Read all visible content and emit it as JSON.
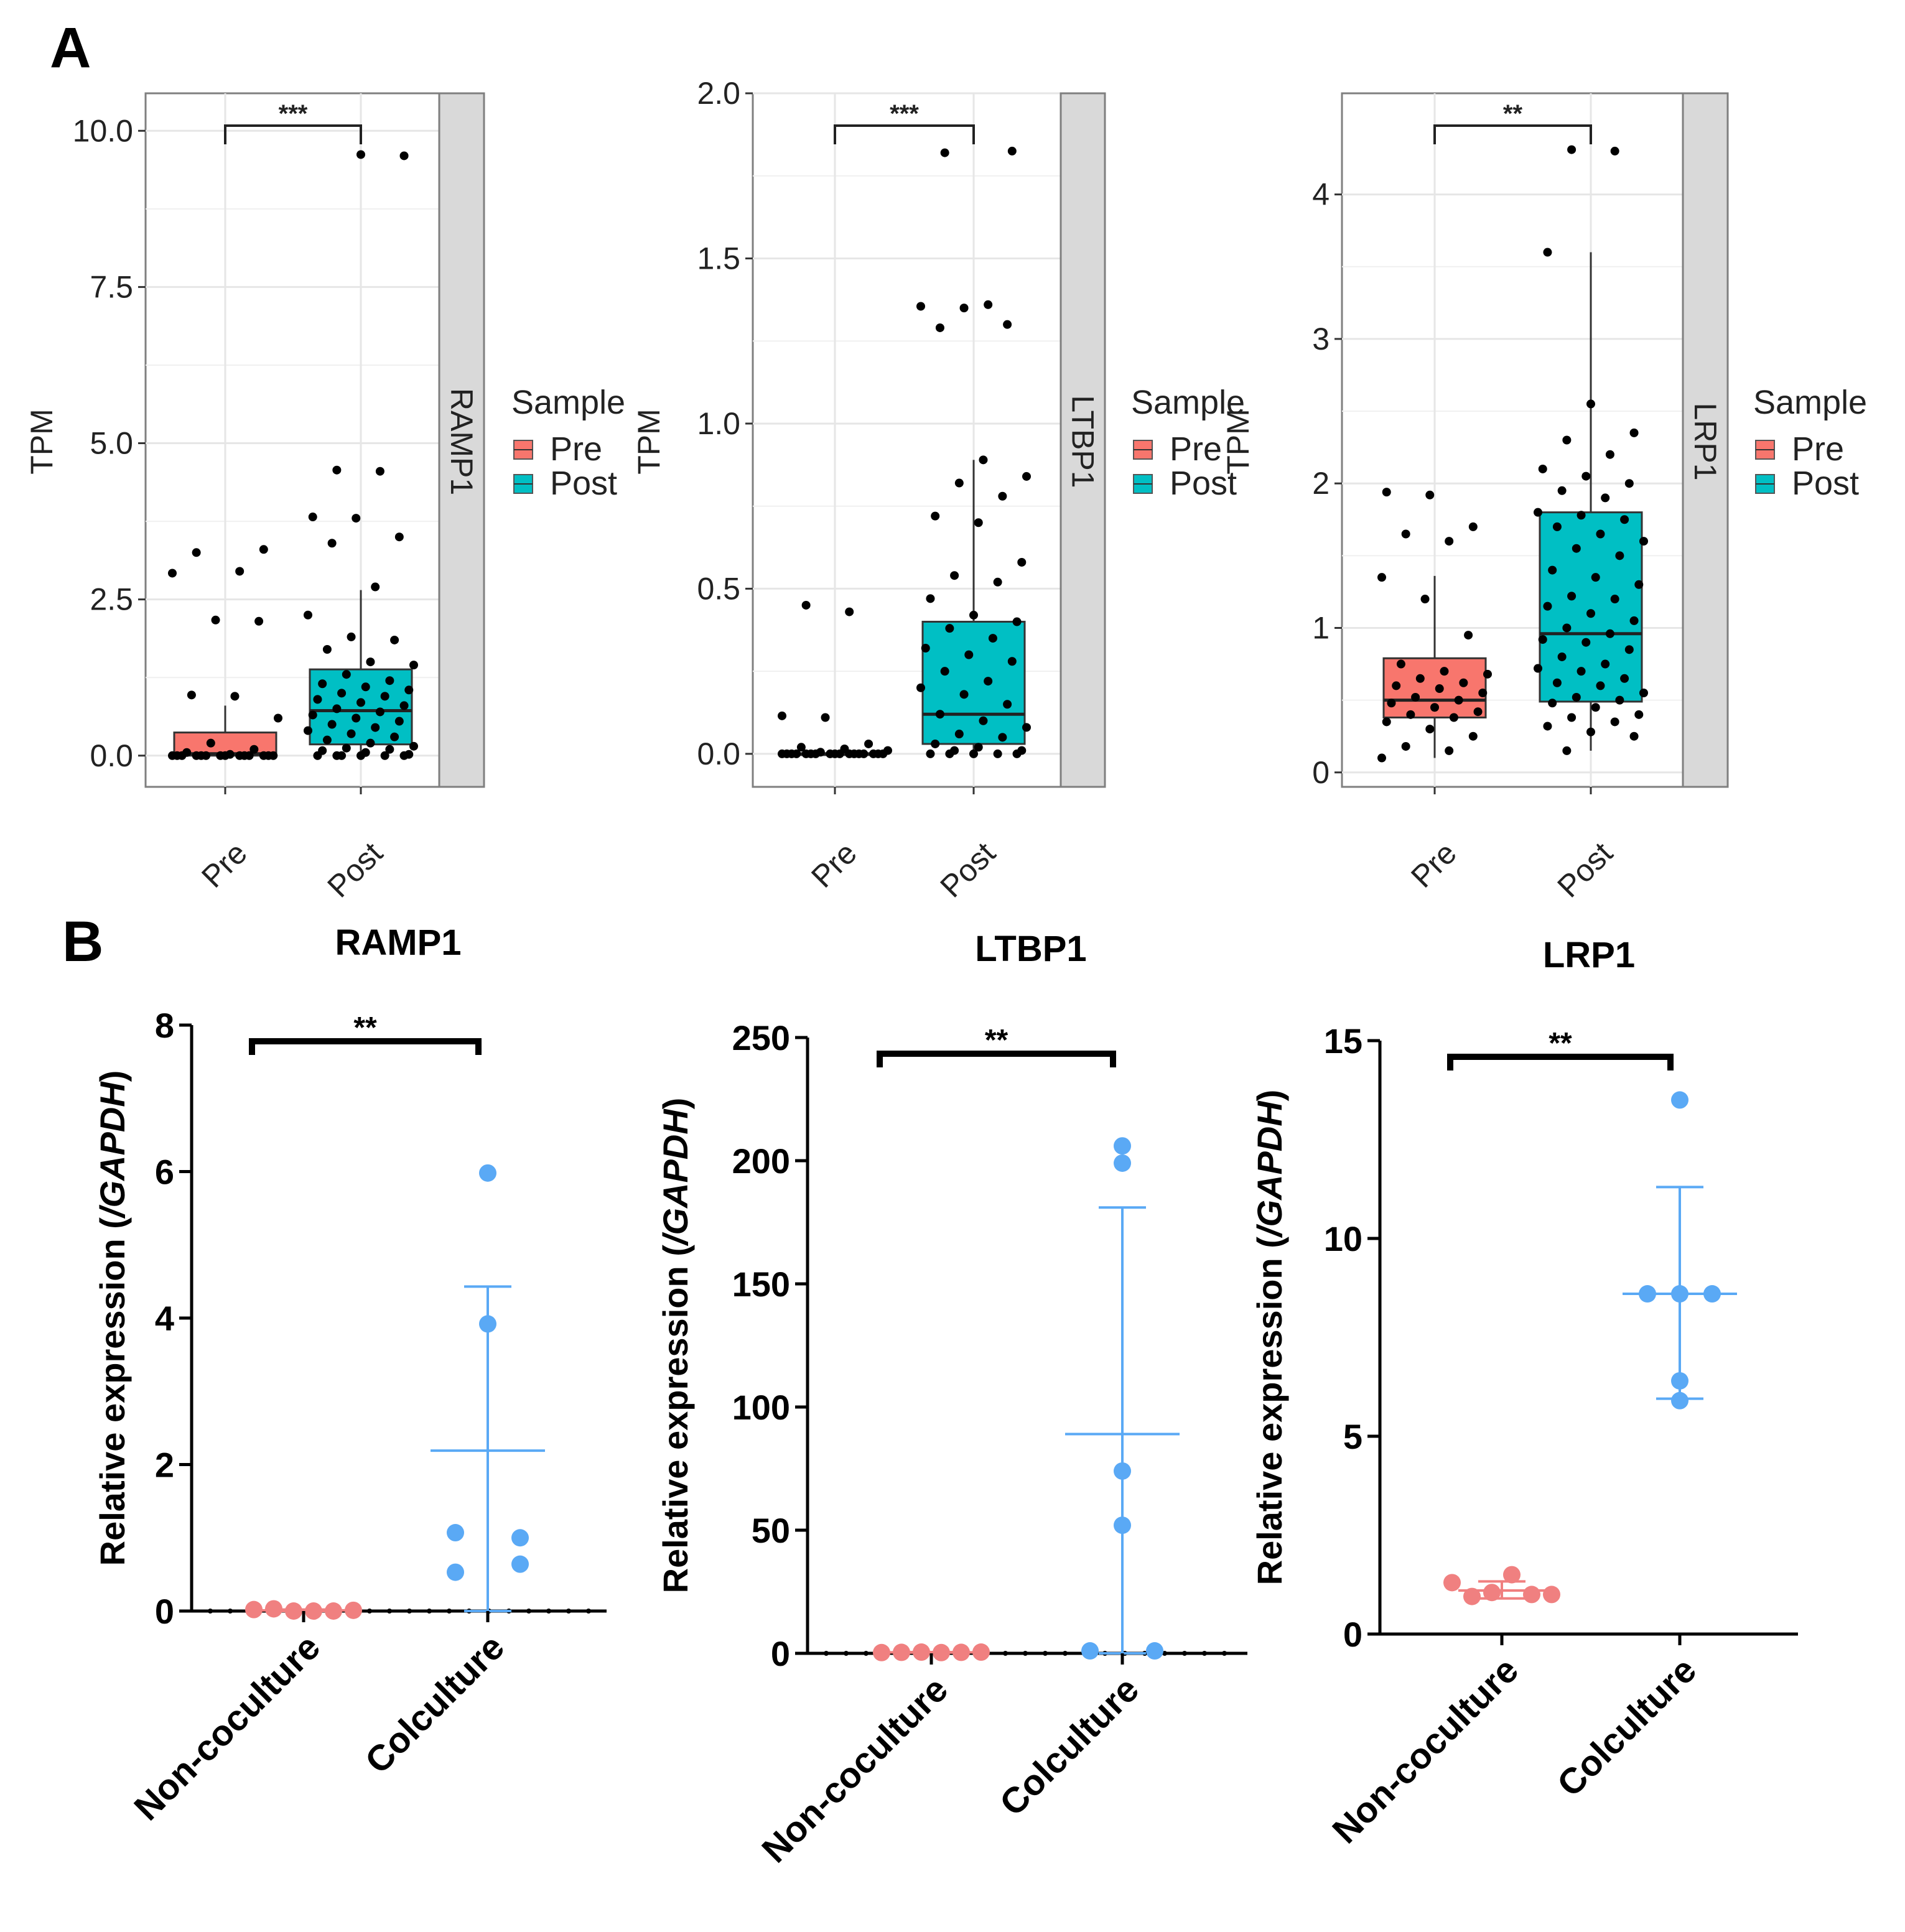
{
  "panel_labels": {
    "a": "A",
    "b": "B"
  },
  "colors": {
    "pre": "#F8766D",
    "post": "#00BFC4",
    "noncoculture": "#F08080",
    "coculture": "#5AA9F5",
    "strip": "#D9D9D9"
  },
  "chart_data": [
    {
      "id": "a1",
      "type": "box",
      "facet": "RAMP1",
      "ylabel": "TPM",
      "categories": [
        "Pre",
        "Post"
      ],
      "ylim": [
        -0.5,
        10.6
      ],
      "yticks": [
        0,
        2.5,
        5,
        7.5,
        10
      ],
      "ytick_labels": [
        "0.0",
        "2.5",
        "5.0",
        "7.5",
        "10.0"
      ],
      "legend_title": "Sample",
      "legend": [
        "Pre",
        "Post"
      ],
      "significance": "***",
      "boxes": [
        {
          "q1": 0.0,
          "median": 0.03,
          "q3": 0.37,
          "whisker_low": 0,
          "whisker_high": 0.8
        },
        {
          "q1": 0.18,
          "median": 0.72,
          "q3": 1.38,
          "whisker_low": 0,
          "whisker_high": 2.65
        }
      ],
      "points": [
        [
          0,
          0,
          0,
          0,
          0,
          0,
          0,
          0,
          0,
          0,
          0,
          0,
          0,
          0,
          0.02,
          0.05,
          0.1,
          0.2,
          0.6,
          0.95,
          0.97,
          2.15,
          2.17,
          2.92,
          2.95,
          3.25,
          3.3
        ],
        [
          0,
          0,
          0,
          0,
          0,
          0,
          0.02,
          0.05,
          0.08,
          0.1,
          0.12,
          0.15,
          0.2,
          0.25,
          0.3,
          0.35,
          0.4,
          0.45,
          0.5,
          0.55,
          0.6,
          0.65,
          0.7,
          0.75,
          0.8,
          0.85,
          0.9,
          0.95,
          1.0,
          1.05,
          1.1,
          1.15,
          1.2,
          1.3,
          1.45,
          1.5,
          1.7,
          1.85,
          1.9,
          2.25,
          2.7,
          3.4,
          3.5,
          3.8,
          3.82,
          4.55,
          4.57,
          9.6,
          9.62
        ]
      ]
    },
    {
      "id": "a2",
      "type": "box",
      "facet": "LTBP1",
      "ylabel": "TPM",
      "categories": [
        "Pre",
        "Post"
      ],
      "ylim": [
        -0.1,
        2.0
      ],
      "yticks": [
        0,
        0.5,
        1,
        1.5,
        2
      ],
      "ytick_labels": [
        "0.0",
        "0.5",
        "1.0",
        "1.5",
        "2.0"
      ],
      "legend_title": "Sample",
      "legend": [
        "Pre",
        "Post"
      ],
      "significance": "***",
      "boxes": [
        {
          "q1": 0.0,
          "median": 0.0,
          "q3": 0.0,
          "whisker_low": 0,
          "whisker_high": 0.0
        },
        {
          "q1": 0.03,
          "median": 0.12,
          "q3": 0.4,
          "whisker_low": 0,
          "whisker_high": 0.89
        }
      ],
      "points": [
        [
          0,
          0,
          0,
          0,
          0,
          0,
          0,
          0,
          0,
          0,
          0,
          0,
          0,
          0,
          0,
          0,
          0,
          0.005,
          0.01,
          0.015,
          0.02,
          0.03,
          0.11,
          0.115,
          0.43,
          0.45
        ],
        [
          0,
          0,
          0,
          0,
          0,
          0.01,
          0.01,
          0.02,
          0.03,
          0.05,
          0.06,
          0.08,
          0.1,
          0.12,
          0.15,
          0.18,
          0.2,
          0.22,
          0.25,
          0.28,
          0.3,
          0.32,
          0.35,
          0.38,
          0.4,
          0.42,
          0.47,
          0.52,
          0.54,
          0.58,
          0.7,
          0.72,
          0.78,
          0.82,
          0.84,
          0.89,
          1.29,
          1.3,
          1.35,
          1.355,
          1.36,
          1.82,
          1.825
        ]
      ]
    },
    {
      "id": "a3",
      "type": "box",
      "facet": "LRP1",
      "ylabel": "TPM",
      "categories": [
        "Pre",
        "Post"
      ],
      "ylim": [
        -0.1,
        4.7
      ],
      "yticks": [
        0,
        1,
        2,
        3,
        4
      ],
      "ytick_labels": [
        "0",
        "1",
        "2",
        "3",
        "4"
      ],
      "legend_title": "Sample",
      "legend": [
        "Pre",
        "Post"
      ],
      "significance": "**",
      "boxes": [
        {
          "q1": 0.38,
          "median": 0.5,
          "q3": 0.79,
          "whisker_low": 0.1,
          "whisker_high": 1.36
        },
        {
          "q1": 0.49,
          "median": 0.96,
          "q3": 1.8,
          "whisker_low": 0.15,
          "whisker_high": 3.6
        }
      ],
      "points": [
        [
          0.1,
          0.15,
          0.18,
          0.25,
          0.3,
          0.35,
          0.38,
          0.4,
          0.42,
          0.45,
          0.48,
          0.5,
          0.52,
          0.55,
          0.58,
          0.6,
          0.62,
          0.65,
          0.68,
          0.7,
          0.75,
          0.95,
          1.2,
          1.35,
          1.6,
          1.65,
          1.7,
          1.92,
          1.94
        ],
        [
          0.15,
          0.25,
          0.28,
          0.32,
          0.35,
          0.38,
          0.4,
          0.45,
          0.48,
          0.5,
          0.52,
          0.55,
          0.6,
          0.62,
          0.65,
          0.7,
          0.72,
          0.75,
          0.8,
          0.85,
          0.9,
          0.92,
          0.96,
          1.0,
          1.05,
          1.1,
          1.15,
          1.2,
          1.22,
          1.3,
          1.35,
          1.4,
          1.5,
          1.55,
          1.6,
          1.65,
          1.7,
          1.75,
          1.78,
          1.8,
          1.9,
          1.95,
          2.0,
          2.05,
          2.1,
          2.2,
          2.3,
          2.35,
          2.55,
          3.6,
          4.3,
          4.31
        ]
      ]
    },
    {
      "id": "b1",
      "type": "scatter",
      "title": "RAMP1",
      "ylabel_prefix": "Relative expression (",
      "ylabel_italic": "/GAPDH",
      "ylabel_suffix": ")",
      "categories": [
        "Non-coculture",
        "Colculture"
      ],
      "ylim": [
        0,
        8
      ],
      "yticks": [
        0,
        2,
        4,
        6,
        8
      ],
      "ytick_labels": [
        "0",
        "2",
        "4",
        "6",
        "8"
      ],
      "significance": "**",
      "series": [
        {
          "name": "Non-coculture",
          "values": [
            0.02,
            0.03,
            0.0,
            0.0,
            0.0,
            0.01
          ],
          "mean": 0.01,
          "sd_low": 0.0,
          "sd_high": 0.02
        },
        {
          "name": "Colculture",
          "values": [
            5.98,
            3.92,
            1.07,
            0.53,
            1.0,
            0.64
          ],
          "mean": 2.19,
          "sd_low": 0.0,
          "sd_high": 4.43
        }
      ]
    },
    {
      "id": "b2",
      "type": "scatter",
      "title": "LTBP1",
      "ylabel_prefix": "Relative expression (",
      "ylabel_italic": "/GAPDH",
      "ylabel_suffix": ")",
      "categories": [
        "Non-coculture",
        "Colculture"
      ],
      "ylim": [
        0,
        250
      ],
      "yticks": [
        0,
        50,
        100,
        150,
        200,
        250
      ],
      "ytick_labels": [
        "0",
        "50",
        "100",
        "150",
        "200",
        "250"
      ],
      "significance": "**",
      "series": [
        {
          "name": "Non-coculture",
          "values": [
            0.3,
            0.4,
            0.5,
            0.3,
            0.4,
            0.5
          ],
          "mean": 0.4,
          "sd_low": 0.3,
          "sd_high": 0.5
        },
        {
          "name": "Colculture",
          "values": [
            206,
            199,
            74,
            52,
            1,
            1
          ],
          "mean": 89,
          "sd_low": 0.0,
          "sd_high": 181
        }
      ]
    },
    {
      "id": "b3",
      "type": "scatter",
      "title": "LRP1",
      "ylabel_prefix": "Relative expression (",
      "ylabel_italic": "/GAPDH",
      "ylabel_suffix": ")",
      "categories": [
        "Non-coculture",
        "Colculture"
      ],
      "ylim": [
        0,
        15
      ],
      "yticks": [
        0,
        5,
        10,
        15
      ],
      "ytick_labels": [
        "0",
        "5",
        "10",
        "15"
      ],
      "significance": "**",
      "series": [
        {
          "name": "Non-coculture",
          "values": [
            1.3,
            0.95,
            1.05,
            1.5,
            1.0,
            1.0
          ],
          "mean": 1.1,
          "sd_low": 0.9,
          "sd_high": 1.33
        },
        {
          "name": "Colculture",
          "values": [
            13.5,
            8.6,
            8.6,
            8.6,
            6.4,
            5.9
          ],
          "mean": 8.6,
          "sd_low": 5.95,
          "sd_high": 11.3
        }
      ]
    }
  ]
}
